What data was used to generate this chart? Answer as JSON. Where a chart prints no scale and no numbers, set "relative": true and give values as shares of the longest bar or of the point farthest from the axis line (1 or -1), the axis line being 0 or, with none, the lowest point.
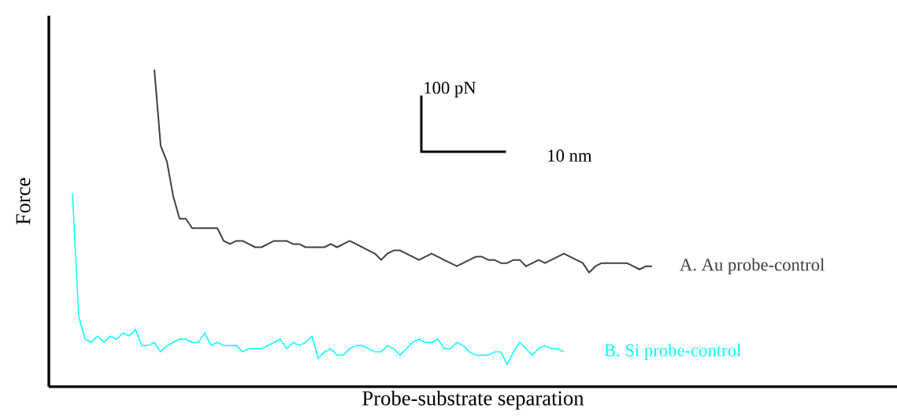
{
  "chart_data": {
    "type": "line",
    "relative": true,
    "xlabel": "Probe-substrate  separation",
    "ylabel": "Force",
    "annotations": [
      "100 pN",
      "10 nm"
    ],
    "categories": [
      null,
      null,
      null,
      null,
      null,
      null,
      null,
      null,
      null,
      null,
      null,
      null,
      null,
      null,
      null,
      null,
      null,
      null,
      null,
      null,
      null,
      null,
      null,
      null,
      null,
      null,
      null,
      null,
      null,
      null,
      null,
      null,
      null,
      null,
      null,
      null,
      null,
      null,
      null,
      null,
      null,
      null,
      null,
      null,
      null,
      null,
      null,
      null,
      null,
      null,
      null,
      null,
      null,
      null,
      null,
      null,
      null,
      null,
      null,
      null,
      null,
      null,
      null,
      null,
      null,
      null,
      null,
      null,
      null,
      null,
      null,
      null,
      null,
      null,
      null,
      null,
      null,
      null,
      null,
      null,
      null,
      null,
      null,
      null,
      null,
      null,
      null,
      null,
      null,
      null,
      null,
      null,
      null
    ],
    "series": [
      {
        "name": "A. Au probe-control",
        "color": "#404040",
        "values": [
          null,
          null,
          null,
          null,
          null,
          null,
          null,
          null,
          null,
          null,
          null,
          null,
          null,
          1.0,
          0.76,
          0.71,
          0.6,
          0.53,
          0.53,
          0.5,
          0.5,
          0.5,
          0.5,
          0.5,
          0.46,
          0.45,
          0.46,
          0.46,
          0.45,
          0.44,
          0.44,
          0.45,
          0.46,
          0.46,
          0.46,
          0.45,
          0.45,
          0.44,
          0.44,
          0.44,
          0.44,
          0.45,
          0.44,
          0.45,
          0.46,
          0.45,
          0.44,
          0.43,
          0.42,
          0.4,
          0.42,
          0.43,
          0.43,
          0.42,
          0.41,
          0.4,
          0.41,
          0.42,
          0.41,
          0.4,
          0.39,
          0.38,
          0.39,
          0.4,
          0.41,
          0.41,
          0.4,
          0.4,
          0.39,
          0.39,
          0.4,
          0.4,
          0.38,
          0.39,
          0.4,
          0.39,
          0.4,
          0.41,
          0.42,
          0.41,
          0.4,
          0.39,
          0.36,
          0.38,
          0.39,
          0.39,
          0.39,
          0.39,
          0.39,
          0.38,
          0.37,
          0.38,
          0.38
        ]
      },
      {
        "name": "B. Si probe-control",
        "color": "#00ffff",
        "values": [
          0.61,
          0.22,
          0.15,
          0.14,
          0.16,
          0.14,
          0.16,
          0.15,
          0.17,
          0.16,
          0.18,
          0.13,
          0.13,
          0.14,
          0.11,
          0.13,
          0.14,
          0.15,
          0.15,
          0.14,
          0.14,
          0.17,
          0.13,
          0.14,
          0.13,
          0.13,
          0.13,
          0.11,
          0.12,
          0.12,
          0.12,
          0.13,
          0.14,
          0.15,
          0.12,
          0.14,
          0.13,
          0.14,
          0.16,
          0.09,
          0.11,
          0.12,
          0.1,
          0.1,
          0.12,
          0.13,
          0.13,
          0.12,
          0.11,
          0.11,
          0.13,
          0.12,
          0.1,
          0.12,
          0.14,
          0.15,
          0.14,
          0.14,
          0.15,
          0.12,
          0.12,
          0.14,
          0.13,
          0.11,
          0.1,
          0.1,
          0.1,
          0.11,
          0.11,
          0.07,
          0.11,
          0.14,
          0.12,
          0.1,
          0.12,
          0.13,
          0.12,
          0.12,
          0.11,
          null,
          null,
          null,
          null,
          null,
          null,
          null,
          null,
          null,
          null,
          null,
          null,
          null,
          null
        ]
      }
    ]
  }
}
